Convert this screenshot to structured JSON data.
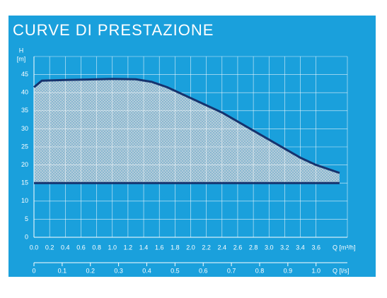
{
  "chart_data": {
    "type": "line",
    "title": "CURVE DI PRESTAZIONE",
    "y_label_top": "H",
    "y_label": "[m]",
    "x_label": "Q [m³/h]",
    "x2_label": "Q [l/s]",
    "xlim": [
      0,
      4.0
    ],
    "xticks": [
      {
        "value": 0,
        "label": "0.0"
      },
      0.2,
      0.4,
      0.6,
      0.8,
      {
        "value": 1,
        "label": "1.0"
      },
      1.2,
      1.4,
      1.6,
      1.8,
      {
        "value": 2,
        "label": "2.0"
      },
      2.2,
      2.4,
      2.6,
      2.8,
      {
        "value": 3,
        "label": "3.0"
      },
      3.2,
      3.4,
      3.6
    ],
    "ylim": [
      0,
      50
    ],
    "yticks": [
      0,
      5,
      10,
      15,
      20,
      25,
      30,
      35,
      40,
      45
    ],
    "x2lim": [
      0,
      1.1111
    ],
    "x2ticks": [
      0,
      0.1,
      0.2,
      0.3,
      0.4,
      0.5,
      0.6,
      0.7,
      0.8,
      0.9,
      {
        "value": 1,
        "label": "1.0"
      }
    ],
    "grid": true,
    "series": [
      {
        "color": "#16336e",
        "x": [
          0,
          0.1,
          0.4,
          1.0,
          1.3,
          1.5,
          1.7,
          2.0,
          2.4,
          2.8,
          3.2,
          3.4,
          3.6,
          3.9
        ],
        "values": [
          41.5,
          43.3,
          43.5,
          43.8,
          43.7,
          43,
          41.5,
          38.5,
          34.5,
          29.5,
          24.5,
          22,
          20,
          17.8
        ]
      },
      {
        "color": "#16336e",
        "x": [
          0,
          3.9
        ],
        "values": [
          15,
          15
        ]
      }
    ]
  }
}
